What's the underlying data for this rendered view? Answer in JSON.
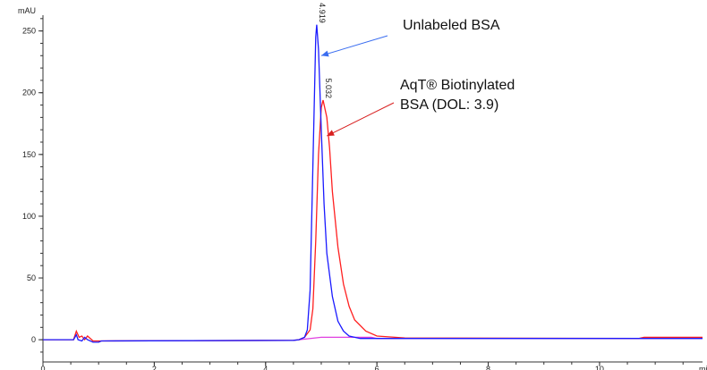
{
  "chart_data": {
    "type": "line",
    "xlabel": "mi",
    "ylabel": "mAU",
    "xlim": [
      0,
      11.85
    ],
    "ylim": [
      -18,
      270
    ],
    "xticks": [
      0,
      2,
      4,
      6,
      8,
      10
    ],
    "yticks": [
      0,
      50,
      100,
      150,
      200,
      250
    ],
    "grid": false,
    "colors": {
      "unlabeled": "#1a1aff",
      "biotinylated": "#ff2020",
      "baseline": "#e040e0"
    },
    "series": [
      {
        "key": "unlabeled",
        "points": [
          [
            0,
            0
          ],
          [
            0.55,
            0
          ],
          [
            0.6,
            4
          ],
          [
            0.63,
            0
          ],
          [
            0.7,
            -1
          ],
          [
            0.75,
            2
          ],
          [
            0.8,
            0
          ],
          [
            0.9,
            -2
          ],
          [
            1.0,
            -2
          ],
          [
            1.05,
            -1
          ],
          [
            4.5,
            -0.5
          ],
          [
            4.6,
            0
          ],
          [
            4.7,
            2
          ],
          [
            4.75,
            8
          ],
          [
            4.8,
            40
          ],
          [
            4.85,
            140
          ],
          [
            4.9,
            245
          ],
          [
            4.919,
            255
          ],
          [
            4.95,
            235
          ],
          [
            5.0,
            170
          ],
          [
            5.05,
            110
          ],
          [
            5.1,
            70
          ],
          [
            5.2,
            35
          ],
          [
            5.3,
            15
          ],
          [
            5.4,
            7
          ],
          [
            5.5,
            3
          ],
          [
            5.7,
            1
          ],
          [
            6,
            1
          ],
          [
            7.2,
            1
          ],
          [
            11.85,
            1
          ]
        ]
      },
      {
        "key": "biotinylated",
        "points": [
          [
            0,
            0
          ],
          [
            0.55,
            0
          ],
          [
            0.6,
            7
          ],
          [
            0.65,
            2
          ],
          [
            0.7,
            3
          ],
          [
            0.75,
            0
          ],
          [
            0.8,
            3
          ],
          [
            0.85,
            1
          ],
          [
            0.9,
            -1
          ],
          [
            1.0,
            -1
          ],
          [
            1.05,
            -1
          ],
          [
            4.5,
            -0.5
          ],
          [
            4.6,
            0
          ],
          [
            4.7,
            2
          ],
          [
            4.8,
            8
          ],
          [
            4.85,
            25
          ],
          [
            4.9,
            80
          ],
          [
            4.95,
            150
          ],
          [
            5.0,
            188
          ],
          [
            5.032,
            194
          ],
          [
            5.1,
            180
          ],
          [
            5.15,
            155
          ],
          [
            5.2,
            120
          ],
          [
            5.3,
            75
          ],
          [
            5.4,
            45
          ],
          [
            5.5,
            27
          ],
          [
            5.6,
            16
          ],
          [
            5.8,
            7
          ],
          [
            6.0,
            3
          ],
          [
            6.5,
            1.5
          ],
          [
            10.7,
            1
          ],
          [
            10.8,
            2
          ],
          [
            11.85,
            2
          ]
        ]
      },
      {
        "key": "baseline",
        "points": [
          [
            4.6,
            0
          ],
          [
            5.0,
            2
          ],
          [
            5.9,
            2
          ],
          [
            6.0,
            1
          ],
          [
            11.85,
            1
          ]
        ]
      }
    ],
    "peak_labels": [
      {
        "x": 4.919,
        "y": 255,
        "text": "4.919"
      },
      {
        "x": 5.032,
        "y": 194,
        "text": "5.032"
      }
    ],
    "annotations": [
      {
        "lines": [
          "Unlabeled BSA"
        ],
        "color": "#3a6df0",
        "arrow_to": [
          5.0,
          230
        ]
      },
      {
        "lines": [
          "AqT® Biotinylated",
          "BSA (DOL: 3.9)"
        ],
        "color": "#d82020",
        "arrow_to": [
          5.1,
          165
        ]
      }
    ]
  }
}
